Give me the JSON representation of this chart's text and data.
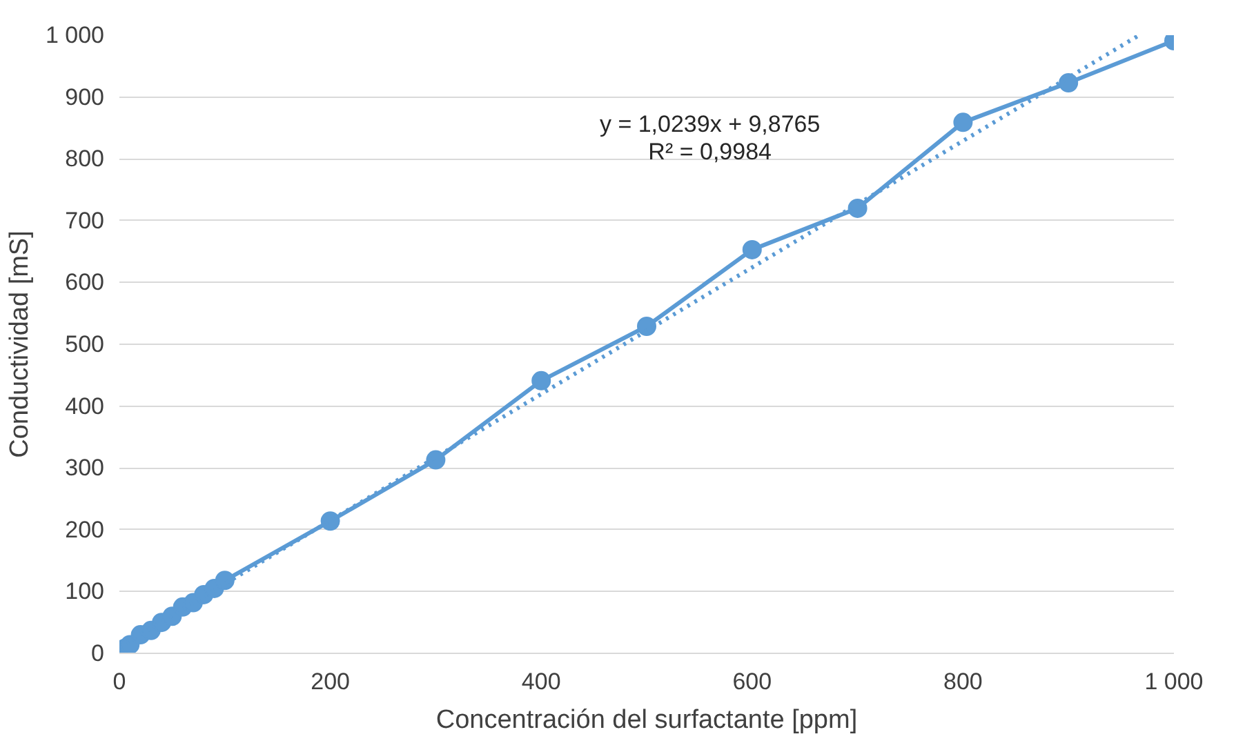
{
  "chart_data": {
    "type": "line",
    "xlabel": "Concentración del surfactante [ppm]",
    "ylabel": "Conductividad [mS]",
    "xlim": [
      0,
      1000
    ],
    "ylim": [
      0,
      1000
    ],
    "xticks": [
      0,
      200,
      400,
      600,
      800,
      {
        "value": 1000,
        "label": "1 000"
      }
    ],
    "yticks": [
      0,
      100,
      200,
      300,
      400,
      500,
      600,
      700,
      800,
      900,
      {
        "value": 1000,
        "label": "1 000"
      }
    ],
    "grid": "y",
    "marker": "circle",
    "series": [
      {
        "color": "#5b9bd5",
        "x": [
          0,
          5,
          10,
          20,
          30,
          40,
          50,
          60,
          70,
          80,
          90,
          100,
          200,
          300,
          400,
          500,
          600,
          700,
          800,
          900,
          1000
        ],
        "values": [
          5,
          8,
          14,
          30,
          37,
          50,
          60,
          75,
          82,
          95,
          105,
          118,
          214,
          313,
          441,
          529,
          653,
          720,
          859,
          923,
          991
        ]
      },
      {
        "type": "line",
        "line_style": "dotted",
        "marker": "none",
        "color": "#5b9bd5",
        "x": [
          0,
          967
        ],
        "values": [
          10,
          1000
        ]
      }
    ],
    "annotations": [
      "y = 1,0239x + 9,8765",
      "R² = 0,9984"
    ]
  }
}
